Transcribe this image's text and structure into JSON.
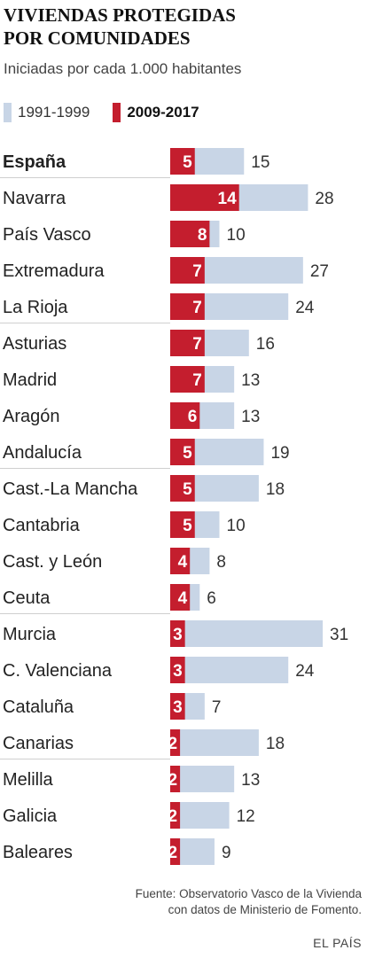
{
  "title_line1": "VIVIENDAS PROTEGIDAS",
  "title_line2": "POR COMUNIDADES",
  "subtitle": "Iniciadas por cada 1.000 habitantes",
  "legend": [
    {
      "label": "1991-1999",
      "color": "#c8d5e6"
    },
    {
      "label": "2009-2017",
      "color": "#c41e2e"
    }
  ],
  "source_line1": "Fuente: Observatorio Vasco de la Vivienda",
  "source_line2": "con datos de Ministerio de Fomento.",
  "brand": "EL PAÍS",
  "chart_data": {
    "type": "bar",
    "orientation": "horizontal",
    "categories": [
      "España",
      "Navarra",
      "País Vasco",
      "Extremadura",
      "La Rioja",
      "Asturias",
      "Madrid",
      "Aragón",
      "Andalucía",
      "Cast.-La Mancha",
      "Cantabria",
      "Cast. y León",
      "Ceuta",
      "Murcia",
      "C. Valenciana",
      "Cataluña",
      "Canarias",
      "Melilla",
      "Galicia",
      "Baleares"
    ],
    "series": [
      {
        "name": "1991-1999",
        "color": "#c8d5e6",
        "values": [
          15,
          28,
          10,
          27,
          24,
          16,
          13,
          13,
          19,
          18,
          10,
          8,
          6,
          31,
          24,
          7,
          18,
          13,
          12,
          9
        ]
      },
      {
        "name": "2009-2017",
        "color": "#c41e2e",
        "values": [
          5,
          14,
          8,
          7,
          7,
          7,
          7,
          6,
          5,
          5,
          5,
          4,
          4,
          3,
          3,
          3,
          2,
          2,
          2,
          2
        ]
      }
    ],
    "highlight_category": "España"
  }
}
